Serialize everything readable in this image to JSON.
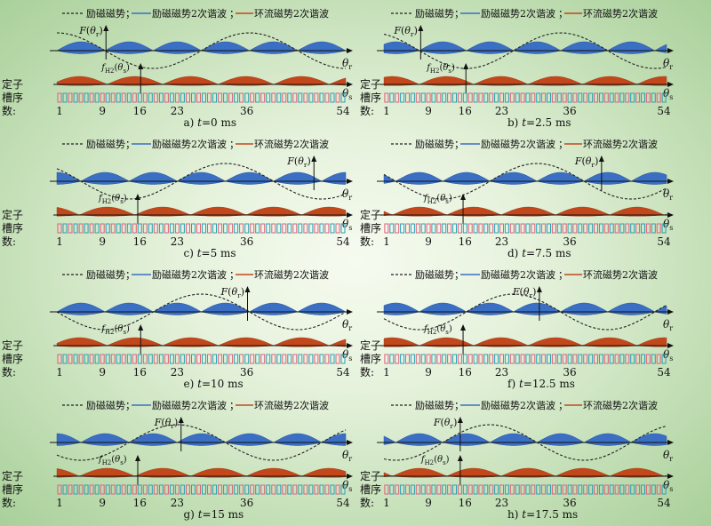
{
  "legend": {
    "excitation": "励磁磁势",
    "sep1": "；",
    "excitation_h2": "励磁磁势2次谐波",
    "sep2": "；",
    "circulating_h2": "环流磁势2次谐波"
  },
  "row_labels": {
    "stator_line1": "定子",
    "stator_line2": "槽序",
    "stator_line3": "数:"
  },
  "labels": {
    "F_symbol": "F(θr)",
    "f_symbol": "fH2(θs)",
    "theta_r": "θr",
    "theta_s": "θs"
  },
  "slot_ticks": [
    "1",
    "9",
    "16",
    "23",
    "36",
    "54"
  ],
  "colors": {
    "blue": "#3a6fc4",
    "orange": "#c2481c",
    "slot_pink": "#e0607a",
    "slot_cyan": "#2aa0b8"
  },
  "panels": [
    {
      "caption_prefix": "a) ",
      "t_symbol": "t",
      "caption_suffix": "=0 ms"
    },
    {
      "caption_prefix": "b) ",
      "t_symbol": "t",
      "caption_suffix": "=2.5 ms"
    },
    {
      "caption_prefix": "c) ",
      "t_symbol": "t",
      "caption_suffix": "=5 ms"
    },
    {
      "caption_prefix": "d) ",
      "t_symbol": "t",
      "caption_suffix": "=7.5 ms"
    },
    {
      "caption_prefix": "e) ",
      "t_symbol": "t",
      "caption_suffix": "=10 ms"
    },
    {
      "caption_prefix": "f) ",
      "t_symbol": "t",
      "caption_suffix": "=12.5 ms"
    },
    {
      "caption_prefix": "g) ",
      "t_symbol": "t",
      "caption_suffix": "=15 ms"
    },
    {
      "caption_prefix": "h) ",
      "t_symbol": "t",
      "caption_suffix": "=17.5 ms"
    }
  ]
}
